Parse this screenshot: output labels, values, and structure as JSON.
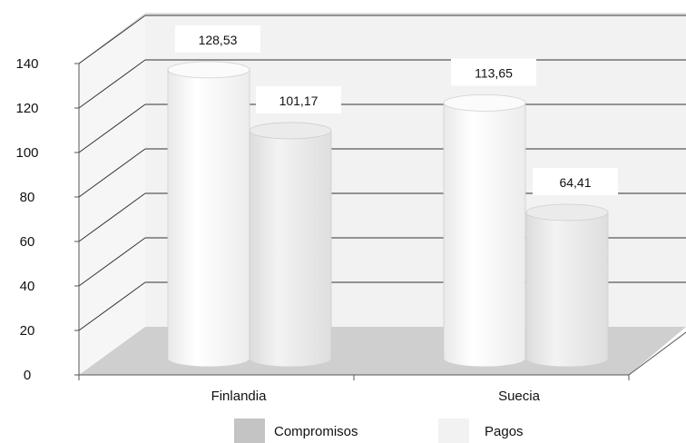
{
  "chart_data": {
    "type": "bar",
    "style": "3d-cylinder",
    "categories": [
      "Finlandia",
      "Suecia"
    ],
    "series": [
      {
        "name": "Compromisos",
        "values": [
          128.53,
          113.65
        ],
        "labels": [
          "128,53",
          "113,65"
        ],
        "color": "#f7f7f7"
      },
      {
        "name": "Pagos",
        "values": [
          101.17,
          64.41
        ],
        "labels": [
          "101,17",
          "64,41"
        ],
        "color": "#e6e6e6"
      }
    ],
    "y_ticks": [
      "0",
      "20",
      "40",
      "60",
      "80",
      "100",
      "120",
      "140"
    ],
    "ylim": [
      0,
      140
    ],
    "grid": true,
    "legend_position": "bottom",
    "legend_swatch_colors": [
      "#c4c4c4",
      "#f2f2f2"
    ],
    "wall_color": "#f2f2f2",
    "floor_color": "#cfcfcf"
  }
}
